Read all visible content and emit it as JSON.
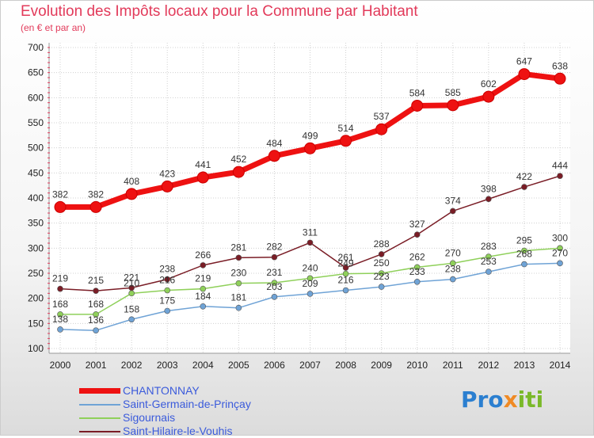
{
  "title": "Evolution des Impôts locaux pour la Commune par Habitant",
  "subtitle": "(en € et par an)",
  "logo": {
    "part1": "Pro",
    "part2": "x",
    "part3": "iti",
    "colors": [
      "#2b7fd0",
      "#f08a24",
      "#7ab929"
    ]
  },
  "chart_data": {
    "type": "line",
    "title": "Evolution des Impôts locaux pour la Commune par Habitant",
    "subtitle": "(en € et par an)",
    "x": [
      "2000",
      "2001",
      "2002",
      "2003",
      "2004",
      "2005",
      "2006",
      "2007",
      "2008",
      "2009",
      "2010",
      "2011",
      "2012",
      "2013",
      "2014"
    ],
    "ylim": [
      100,
      700
    ],
    "yticks": [
      100,
      150,
      200,
      250,
      300,
      350,
      400,
      450,
      500,
      550,
      600,
      650,
      700
    ],
    "grid": true,
    "legend": "bottom-left",
    "series": [
      {
        "name": "CHANTONNAY",
        "color": "#ee1111",
        "values": [
          382,
          382,
          408,
          423,
          441,
          452,
          484,
          499,
          514,
          537,
          584,
          585,
          602,
          647,
          638
        ]
      },
      {
        "name": "Saint-Germain-de-Prinçay",
        "color": "#6fa3d6",
        "values": [
          138,
          136,
          158,
          175,
          184,
          181,
          203,
          209,
          216,
          223,
          233,
          238,
          253,
          268,
          270
        ]
      },
      {
        "name": "Sigournais",
        "color": "#8fd05a",
        "values": [
          168,
          168,
          210,
          216,
          219,
          230,
          231,
          240,
          249,
          250,
          262,
          270,
          283,
          295,
          300
        ]
      },
      {
        "name": "Saint-Hilaire-le-Vouhis",
        "color": "#7a1d26",
        "values": [
          219,
          215,
          221,
          238,
          266,
          281,
          282,
          311,
          261,
          288,
          327,
          374,
          398,
          422,
          444
        ]
      }
    ]
  }
}
